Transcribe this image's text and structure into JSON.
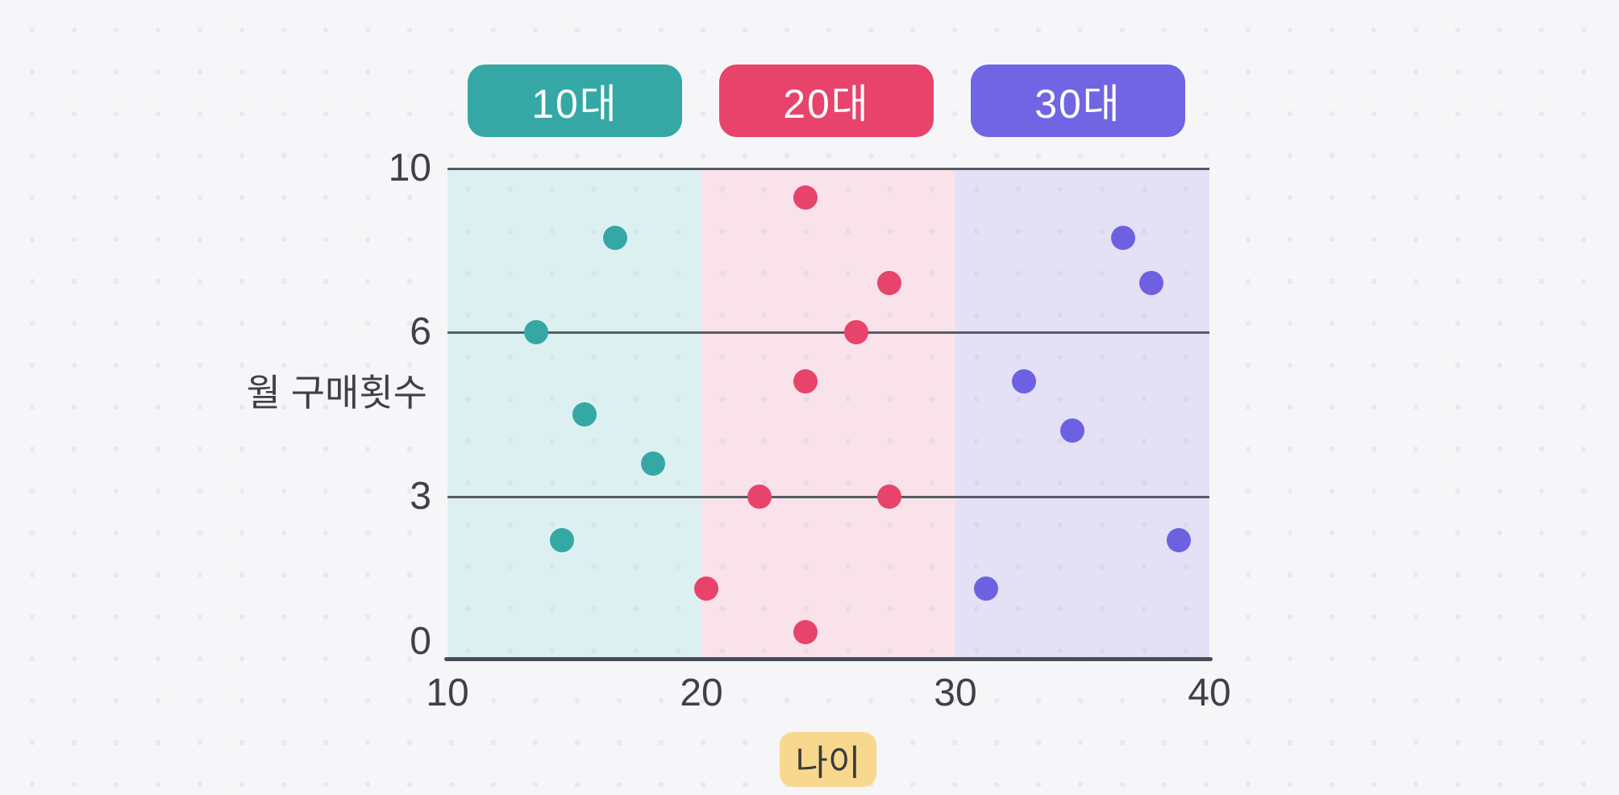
{
  "page": {
    "background": "#F6F6F8",
    "dot_grid_color": "#E9E9ED"
  },
  "legend": {
    "items": [
      {
        "label": "10대",
        "color": "#35A8A6"
      },
      {
        "label": "20대",
        "color": "#E8436B"
      },
      {
        "label": "30대",
        "color": "#7165E3"
      }
    ]
  },
  "chart_data": {
    "type": "scatter",
    "title": "",
    "xlabel": "나이",
    "ylabel": "월 구매횟수",
    "xlim": [
      10,
      40
    ],
    "x_ticks": [
      10,
      20,
      30,
      40
    ],
    "y_ticks": [
      0,
      3,
      6,
      10
    ],
    "y_scale_note": "tick values 0, 3, 6, 10 are drawn at equal vertical intervals (hand-drawn style axis)",
    "grid": "horizontal gridlines at y = 3, 6, 10; solid x-axis at y = 0",
    "legend_position": "top-center",
    "bands": [
      {
        "label": "10대",
        "x_range": [
          10,
          20
        ],
        "fill": "#DDF0F1"
      },
      {
        "label": "20대",
        "x_range": [
          20,
          30
        ],
        "fill": "#F9E2EA"
      },
      {
        "label": "30대",
        "x_range": [
          30,
          40
        ],
        "fill": "#E4E0F6"
      }
    ],
    "series": [
      {
        "name": "10대",
        "color": "#35A8A6",
        "points": [
          [
            16.6,
            8.3
          ],
          [
            13.5,
            6.0
          ],
          [
            15.4,
            4.5
          ],
          [
            18.1,
            3.6
          ],
          [
            14.5,
            2.2
          ]
        ]
      },
      {
        "name": "20대",
        "color": "#E8436B",
        "points": [
          [
            24.1,
            9.3
          ],
          [
            27.4,
            7.2
          ],
          [
            26.1,
            6.0
          ],
          [
            24.1,
            5.1
          ],
          [
            22.3,
            3.0
          ],
          [
            27.4,
            3.0
          ],
          [
            20.2,
            1.3
          ],
          [
            24.1,
            0.5
          ]
        ]
      },
      {
        "name": "30대",
        "color": "#6E61E1",
        "points": [
          [
            36.6,
            8.3
          ],
          [
            37.7,
            7.2
          ],
          [
            32.7,
            5.1
          ],
          [
            34.6,
            4.2
          ],
          [
            38.8,
            2.2
          ],
          [
            31.2,
            1.3
          ]
        ]
      }
    ],
    "x_axis_badge": {
      "label": "나이",
      "background": "#F7D88E"
    },
    "colors": {
      "gridline": "#565B63",
      "axis": "#474D58",
      "tick_text": "#3F4144"
    }
  }
}
